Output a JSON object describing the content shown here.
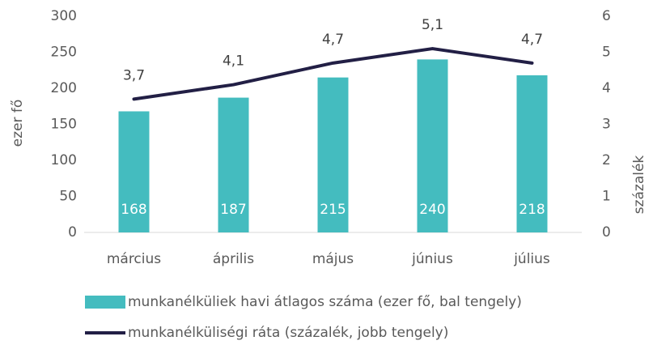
{
  "chart_data": {
    "type": "bar_line",
    "categories": [
      "március",
      "április",
      "május",
      "június",
      "július"
    ],
    "ylabel": "ezer fő",
    "y2label": "százalék",
    "ylim": [
      0,
      300
    ],
    "yticks": [
      0,
      50,
      100,
      150,
      200,
      250,
      300
    ],
    "y2lim": [
      0,
      6
    ],
    "y2ticks": [
      0,
      1,
      2,
      3,
      4,
      5,
      6
    ],
    "series": [
      {
        "name": "munkanélküliek havi átlagos száma (ezer fő, bal tengely)",
        "type": "bar",
        "color": "#44bcbf",
        "values": [
          168,
          187,
          215,
          240,
          218
        ]
      },
      {
        "name": "munkanélküliségi ráta (százalék, jobb tengely)",
        "type": "line",
        "axis": "y2",
        "color": "#221f45",
        "values": [
          3.7,
          4.1,
          4.7,
          5.1,
          4.7
        ],
        "value_labels": [
          "3,7",
          "4,1",
          "4,7",
          "5,1",
          "4,7"
        ]
      }
    ]
  }
}
